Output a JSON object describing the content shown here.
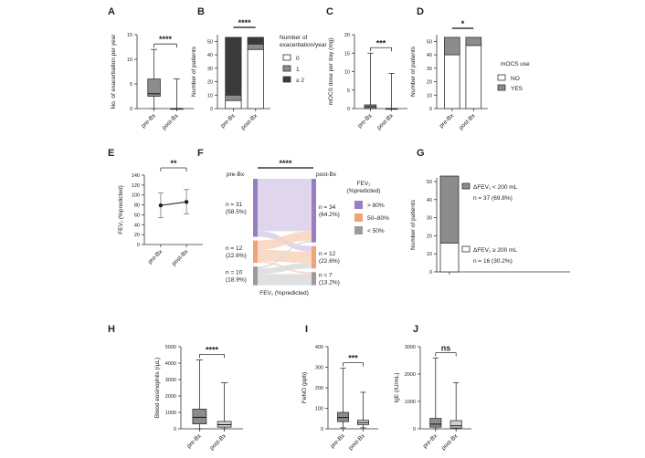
{
  "colors": {
    "dark": "#3a3a3a",
    "mid": "#8c8c8c",
    "light": "#d0d0d0",
    "white": "#ffffff",
    "purple": "#9a7ec4",
    "purple_light": "#d9cfea",
    "orange": "#f0a477",
    "orange_light": "#f8d4bd",
    "grey_flow": "#9b9b9b",
    "grey_light": "#dadada"
  },
  "chart_data": [
    {
      "panel": "A",
      "type": "boxplot",
      "ylabel": "No. of exacerbation per year",
      "categories": [
        "pre-Bx",
        "post-Bx"
      ],
      "ylim": [
        0,
        15
      ],
      "yticks": [
        0,
        5,
        10,
        15
      ],
      "boxes": [
        {
          "min": 0,
          "q1": 2.5,
          "median": 3,
          "q3": 6,
          "max": 12
        },
        {
          "min": 0,
          "q1": 0,
          "median": 0,
          "q3": 0,
          "max": 6
        }
      ],
      "significance": "****"
    },
    {
      "panel": "B",
      "type": "stacked-bar",
      "ylabel": "Number of patients",
      "categories": [
        "pre-Bx",
        "post-Bx"
      ],
      "ylim": [
        0,
        55
      ],
      "yticks": [
        0,
        10,
        20,
        30,
        40,
        50
      ],
      "series": [
        {
          "name": "0",
          "values": [
            6,
            44
          ]
        },
        {
          "name": "1",
          "values": [
            4,
            4
          ]
        },
        {
          "name": "≥ 2",
          "values": [
            43,
            5
          ]
        }
      ],
      "legend_title": "Number of exacerbation/year",
      "significance": "****"
    },
    {
      "panel": "C",
      "type": "boxplot",
      "ylabel": "mOCS dose per day (mg)",
      "categories": [
        "pre-Bx",
        "post-Bx"
      ],
      "ylim": [
        0,
        20
      ],
      "yticks": [
        0,
        5,
        10,
        15,
        20
      ],
      "boxes": [
        {
          "min": 0,
          "q1": 0,
          "median": 0.5,
          "q3": 1,
          "max": 15
        },
        {
          "min": 0,
          "q1": 0,
          "median": 0,
          "q3": 0,
          "max": 9.5
        }
      ],
      "significance": "***"
    },
    {
      "panel": "D",
      "type": "stacked-bar",
      "ylabel": "Number of patients",
      "categories": [
        "pre-Bx",
        "post-Bx"
      ],
      "ylim": [
        0,
        55
      ],
      "yticks": [
        0,
        10,
        20,
        30,
        40,
        50
      ],
      "series": [
        {
          "name": "NO",
          "values": [
            40,
            47
          ]
        },
        {
          "name": "YES",
          "values": [
            13,
            6
          ]
        }
      ],
      "legend_title": "mOCS use",
      "significance": "*"
    },
    {
      "panel": "E",
      "type": "line",
      "ylabel": "FEV₁ (%predicted)",
      "categories": [
        "pre-Bx",
        "post-Bx"
      ],
      "ylim": [
        0,
        140
      ],
      "yticks": [
        0,
        20,
        40,
        60,
        80,
        100,
        120,
        140
      ],
      "values": [
        79,
        86
      ],
      "errors_low": [
        54,
        62
      ],
      "errors_high": [
        104,
        111
      ],
      "significance": "**"
    },
    {
      "panel": "F",
      "type": "sankey",
      "left_label": "pre-Bx",
      "right_label": "post-Bx",
      "xlabel": "FEV₁ (%predicted)",
      "legend_title": "FEV₁ (%predicted)",
      "categories": [
        "> 80%",
        "50–80%",
        "< 50%"
      ],
      "left_nodes": [
        {
          "name": "> 80%",
          "label": "n = 31 (58.5%)",
          "value": 31
        },
        {
          "name": "50–80%",
          "label": "n = 12 (22.6%)",
          "value": 12
        },
        {
          "name": "< 50%",
          "label": "n = 10 (18.9%)",
          "value": 10
        }
      ],
      "right_nodes": [
        {
          "name": "> 80%",
          "label": "n = 34 (64.2%)",
          "value": 34
        },
        {
          "name": "50–80%",
          "label": "n = 12 (22.6%)",
          "value": 12
        },
        {
          "name": "< 50%",
          "label": "n = 7 (13.2%)",
          "value": 7
        }
      ],
      "flows": [
        {
          "from": 0,
          "to": 0,
          "value": 28
        },
        {
          "from": 0,
          "to": 1,
          "value": 3
        },
        {
          "from": 1,
          "to": 0,
          "value": 5
        },
        {
          "from": 1,
          "to": 1,
          "value": 6
        },
        {
          "from": 1,
          "to": 2,
          "value": 1
        },
        {
          "from": 2,
          "to": 0,
          "value": 1
        },
        {
          "from": 2,
          "to": 1,
          "value": 3
        },
        {
          "from": 2,
          "to": 2,
          "value": 6
        }
      ],
      "significance": "****"
    },
    {
      "panel": "G",
      "type": "stacked-bar",
      "ylabel": "Number of patients",
      "categories": [
        ""
      ],
      "ylim": [
        0,
        52
      ],
      "yticks": [
        0,
        10,
        20,
        30,
        40,
        50
      ],
      "series": [
        {
          "name": "ΔFEV₁ ≥ 200 mL",
          "label": "n = 16 (30.2%)",
          "values": [
            16
          ]
        },
        {
          "name": "ΔFEV₁ < 200 mL",
          "label": "n = 37 (69.8%)",
          "values": [
            37
          ]
        }
      ]
    },
    {
      "panel": "H",
      "type": "boxplot",
      "ylabel": "Blood eosinophils (/μL)",
      "categories": [
        "pre-Bx",
        "post-Bx"
      ],
      "ylim": [
        0,
        5000
      ],
      "yticks": [
        0,
        1000,
        2000,
        3000,
        4000,
        5000
      ],
      "boxes": [
        {
          "min": 0,
          "q1": 300,
          "median": 700,
          "q3": 1200,
          "max": 4200
        },
        {
          "min": 0,
          "q1": 100,
          "median": 250,
          "q3": 450,
          "max": 2800
        }
      ],
      "significance": "****"
    },
    {
      "panel": "I",
      "type": "boxplot",
      "ylabel": "FeNO (ppb)",
      "categories": [
        "pre-Bx",
        "post-Bx"
      ],
      "ylim": [
        0,
        400
      ],
      "yticks": [
        0,
        100,
        200,
        300,
        400
      ],
      "boxes": [
        {
          "min": 5,
          "q1": 35,
          "median": 55,
          "q3": 80,
          "max": 295
        },
        {
          "min": 5,
          "q1": 20,
          "median": 30,
          "q3": 42,
          "max": 178
        }
      ],
      "significance": "***"
    },
    {
      "panel": "J",
      "type": "boxplot",
      "ylabel": "IgE (IU/mL)",
      "categories": [
        "pre-Bx",
        "post-Bx"
      ],
      "ylim": [
        0,
        3000
      ],
      "yticks": [
        0,
        1000,
        2000,
        3000
      ],
      "boxes": [
        {
          "min": 0,
          "q1": 60,
          "median": 170,
          "q3": 380,
          "max": 2580
        },
        {
          "min": 0,
          "q1": 30,
          "median": 110,
          "q3": 300,
          "max": 1680
        }
      ],
      "significance": "ns"
    }
  ]
}
